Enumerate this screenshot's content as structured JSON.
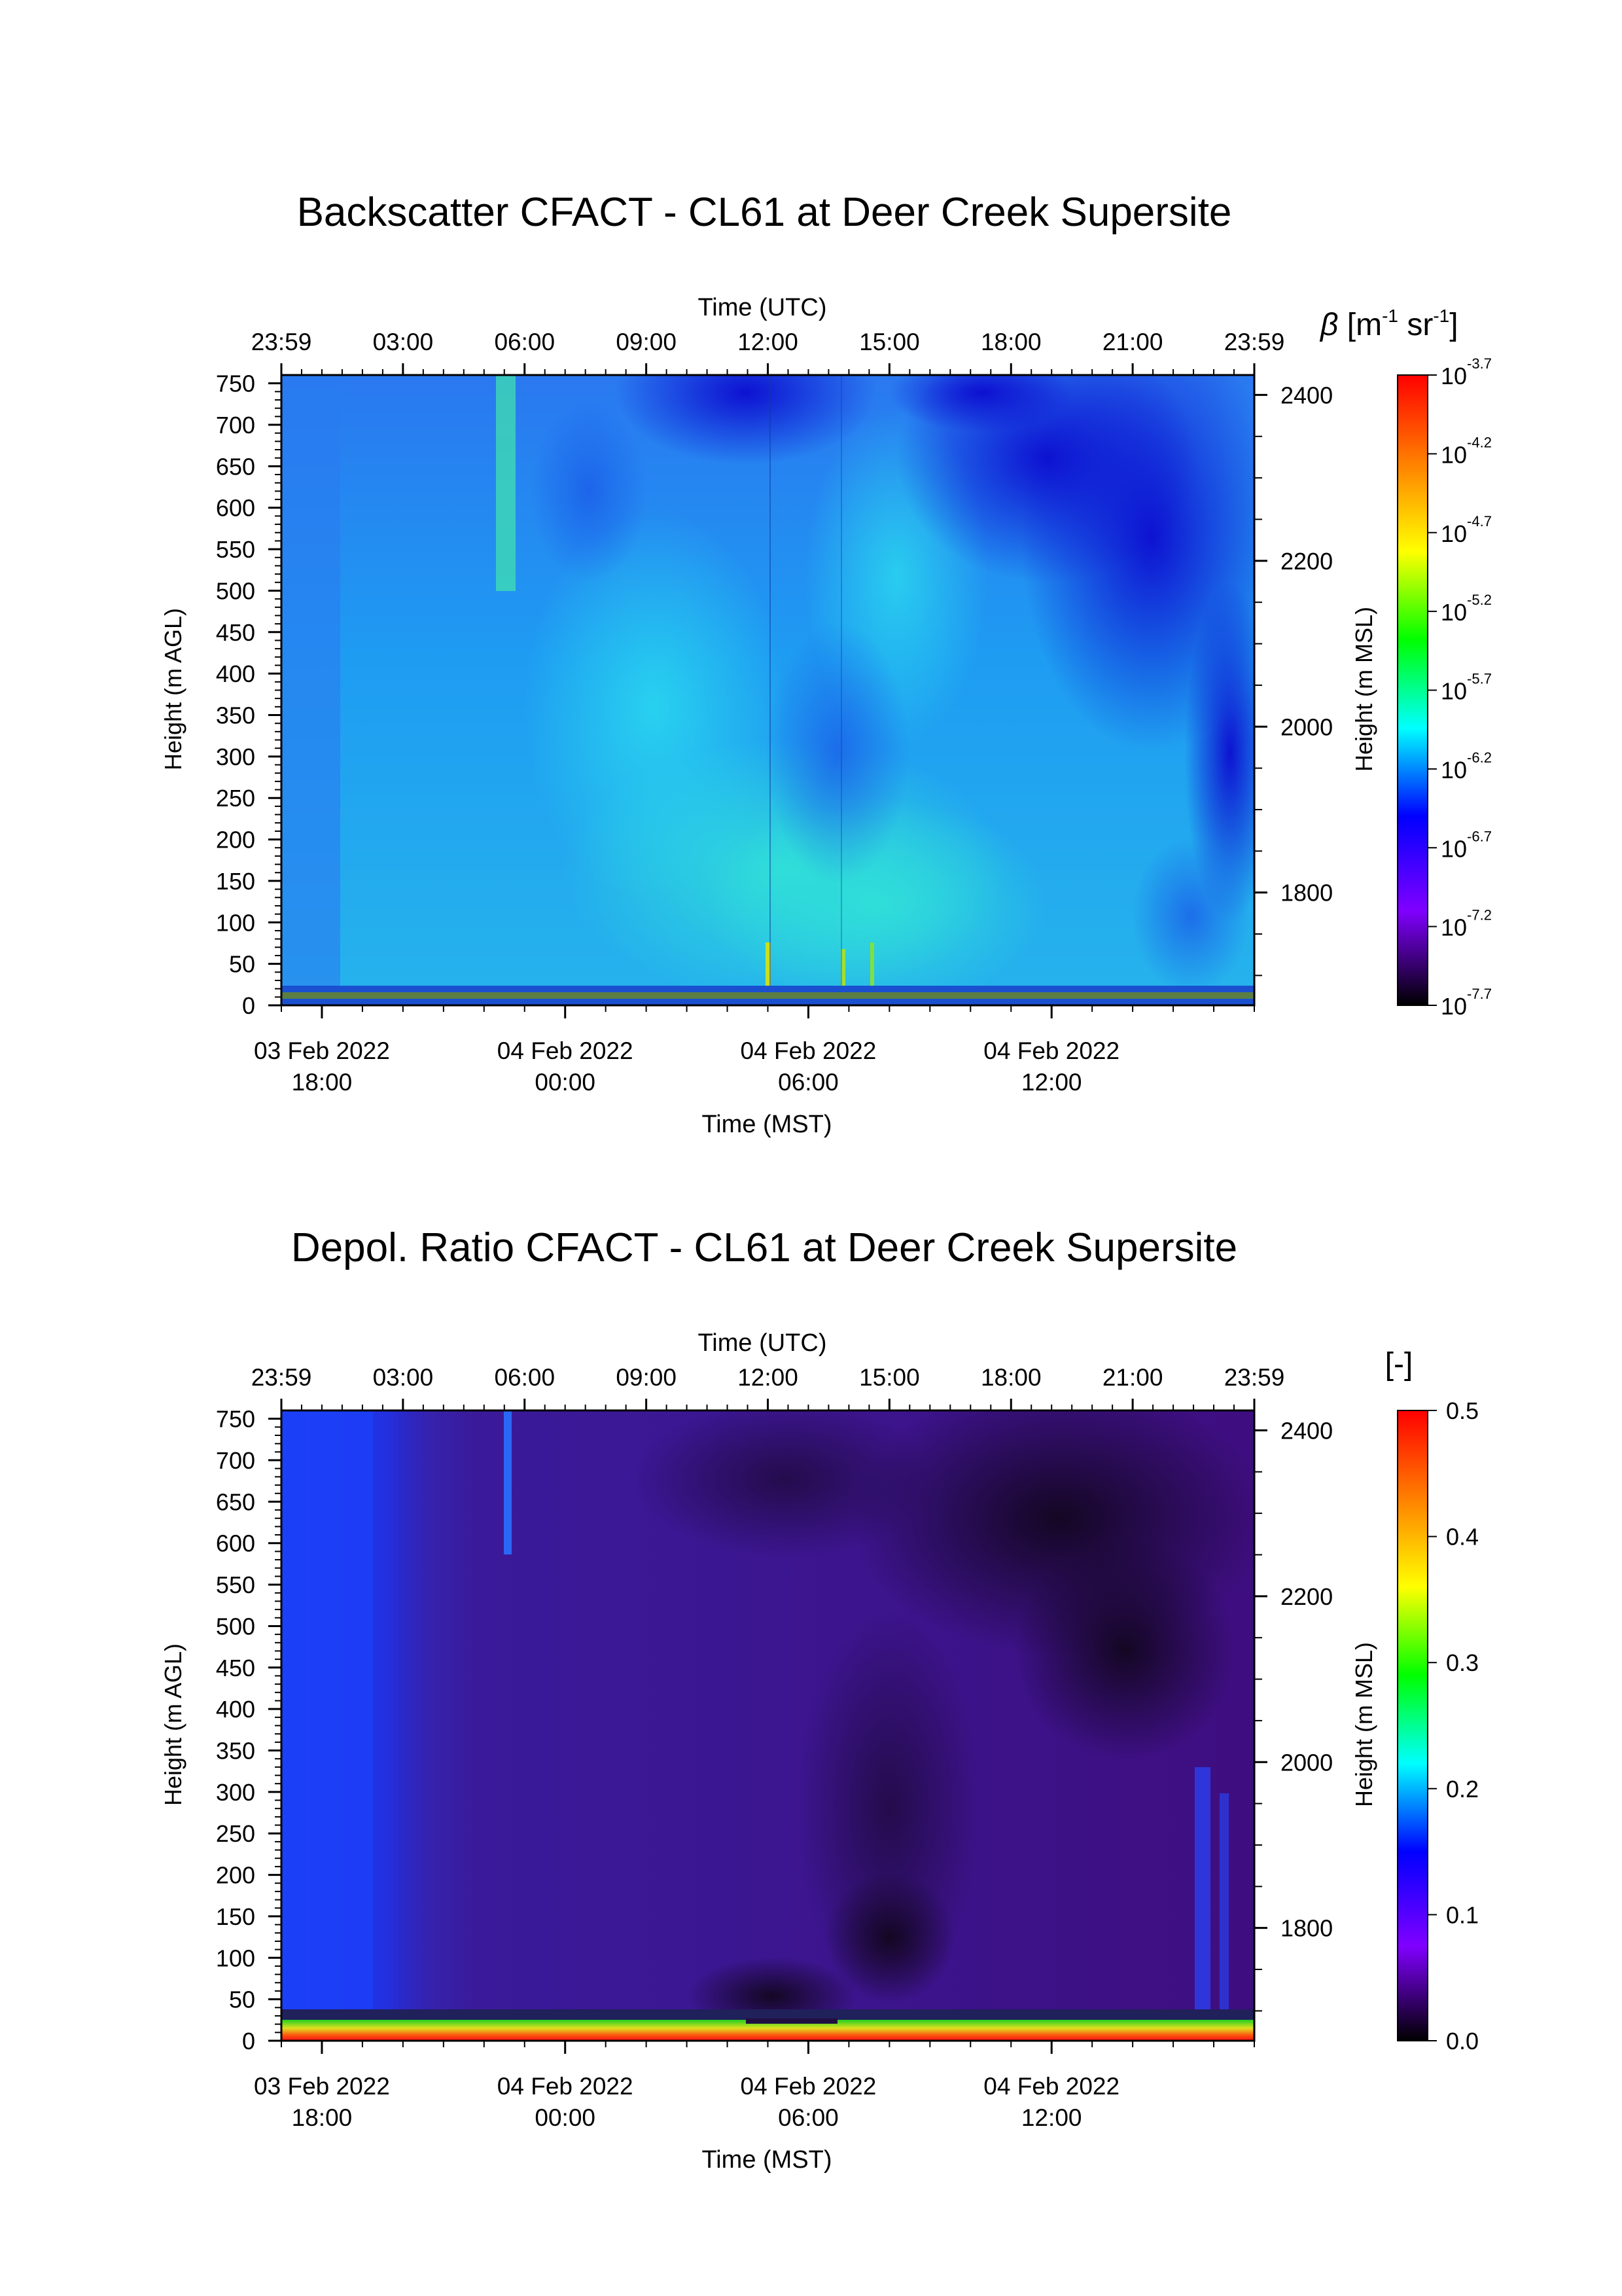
{
  "chart_data": [
    {
      "type": "heatmap",
      "title": "Backscatter CFACT - CL61 at Deer Creek Supersite",
      "top_axis": {
        "label": "Time (UTC)",
        "ticks": [
          "23:59",
          "03:00",
          "06:00",
          "09:00",
          "12:00",
          "15:00",
          "18:00",
          "21:00",
          "23:59"
        ]
      },
      "bottom_axis": {
        "label": "Time (MST)",
        "ticks": [
          {
            "date": "03 Feb 2022",
            "time": "18:00"
          },
          {
            "date": "04 Feb 2022",
            "time": "00:00"
          },
          {
            "date": "04 Feb 2022",
            "time": "06:00"
          },
          {
            "date": "04 Feb 2022",
            "time": "12:00"
          }
        ]
      },
      "left_axis": {
        "label": "Height (m AGL)",
        "ticks": [
          "0",
          "50",
          "100",
          "150",
          "200",
          "250",
          "300",
          "350",
          "400",
          "450",
          "500",
          "550",
          "600",
          "650",
          "700",
          "750"
        ],
        "ylim": [
          0,
          760
        ]
      },
      "right_axis": {
        "label": "Height (m MSL)",
        "ticks": [
          "1800",
          "2000",
          "2200",
          "2400"
        ]
      },
      "colorbar": {
        "label_symbol": "β",
        "label_unit": "[m",
        "label_exp1": "-1",
        "label_mid": " sr",
        "label_exp2": "-1",
        "label_close": "]",
        "scale": "log",
        "ticks": [
          {
            "base": "10",
            "exp": "-3.7"
          },
          {
            "base": "10",
            "exp": "-4.2"
          },
          {
            "base": "10",
            "exp": "-4.7"
          },
          {
            "base": "10",
            "exp": "-5.2"
          },
          {
            "base": "10",
            "exp": "-5.7"
          },
          {
            "base": "10",
            "exp": "-6.2"
          },
          {
            "base": "10",
            "exp": "-6.7"
          },
          {
            "base": "10",
            "exp": "-7.2"
          },
          {
            "base": "10",
            "exp": "-7.7"
          }
        ],
        "colors": [
          "#ff0000",
          "#ff8000",
          "#ffff00",
          "#00ff00",
          "#00ffff",
          "#0000ff",
          "#8000ff",
          "#000000"
        ]
      },
      "description_colors": {
        "dominant": "#1e90ff",
        "upper_right": "#1a1adc",
        "lower_center": "#2ad4e0"
      }
    },
    {
      "type": "heatmap",
      "title": "Depol. Ratio CFACT - CL61 at Deer Creek Supersite",
      "top_axis": {
        "label": "Time (UTC)",
        "ticks": [
          "23:59",
          "03:00",
          "06:00",
          "09:00",
          "12:00",
          "15:00",
          "18:00",
          "21:00",
          "23:59"
        ]
      },
      "bottom_axis": {
        "label": "Time (MST)",
        "ticks": [
          {
            "date": "03 Feb 2022",
            "time": "18:00"
          },
          {
            "date": "04 Feb 2022",
            "time": "00:00"
          },
          {
            "date": "04 Feb 2022",
            "time": "06:00"
          },
          {
            "date": "04 Feb 2022",
            "time": "12:00"
          }
        ]
      },
      "left_axis": {
        "label": "Height (m AGL)",
        "ticks": [
          "0",
          "50",
          "100",
          "150",
          "200",
          "250",
          "300",
          "350",
          "400",
          "450",
          "500",
          "550",
          "600",
          "650",
          "700",
          "750"
        ],
        "ylim": [
          0,
          760
        ]
      },
      "right_axis": {
        "label": "Height (m MSL)",
        "ticks": [
          "1800",
          "2000",
          "2200",
          "2400"
        ]
      },
      "colorbar": {
        "label": "[-]",
        "scale": "linear",
        "range": [
          0.0,
          0.5
        ],
        "ticks": [
          "0.5",
          "0.4",
          "0.3",
          "0.2",
          "0.1",
          "0.0"
        ],
        "colors": [
          "#ff0000",
          "#ff8000",
          "#ffff00",
          "#00ff00",
          "#00ffff",
          "#0000ff",
          "#8000ff",
          "#000000"
        ]
      },
      "description_colors": {
        "dominant": "#3a0a7a",
        "left_band": "#1a3cf0",
        "upper_right": "#1a0a2a"
      }
    }
  ]
}
